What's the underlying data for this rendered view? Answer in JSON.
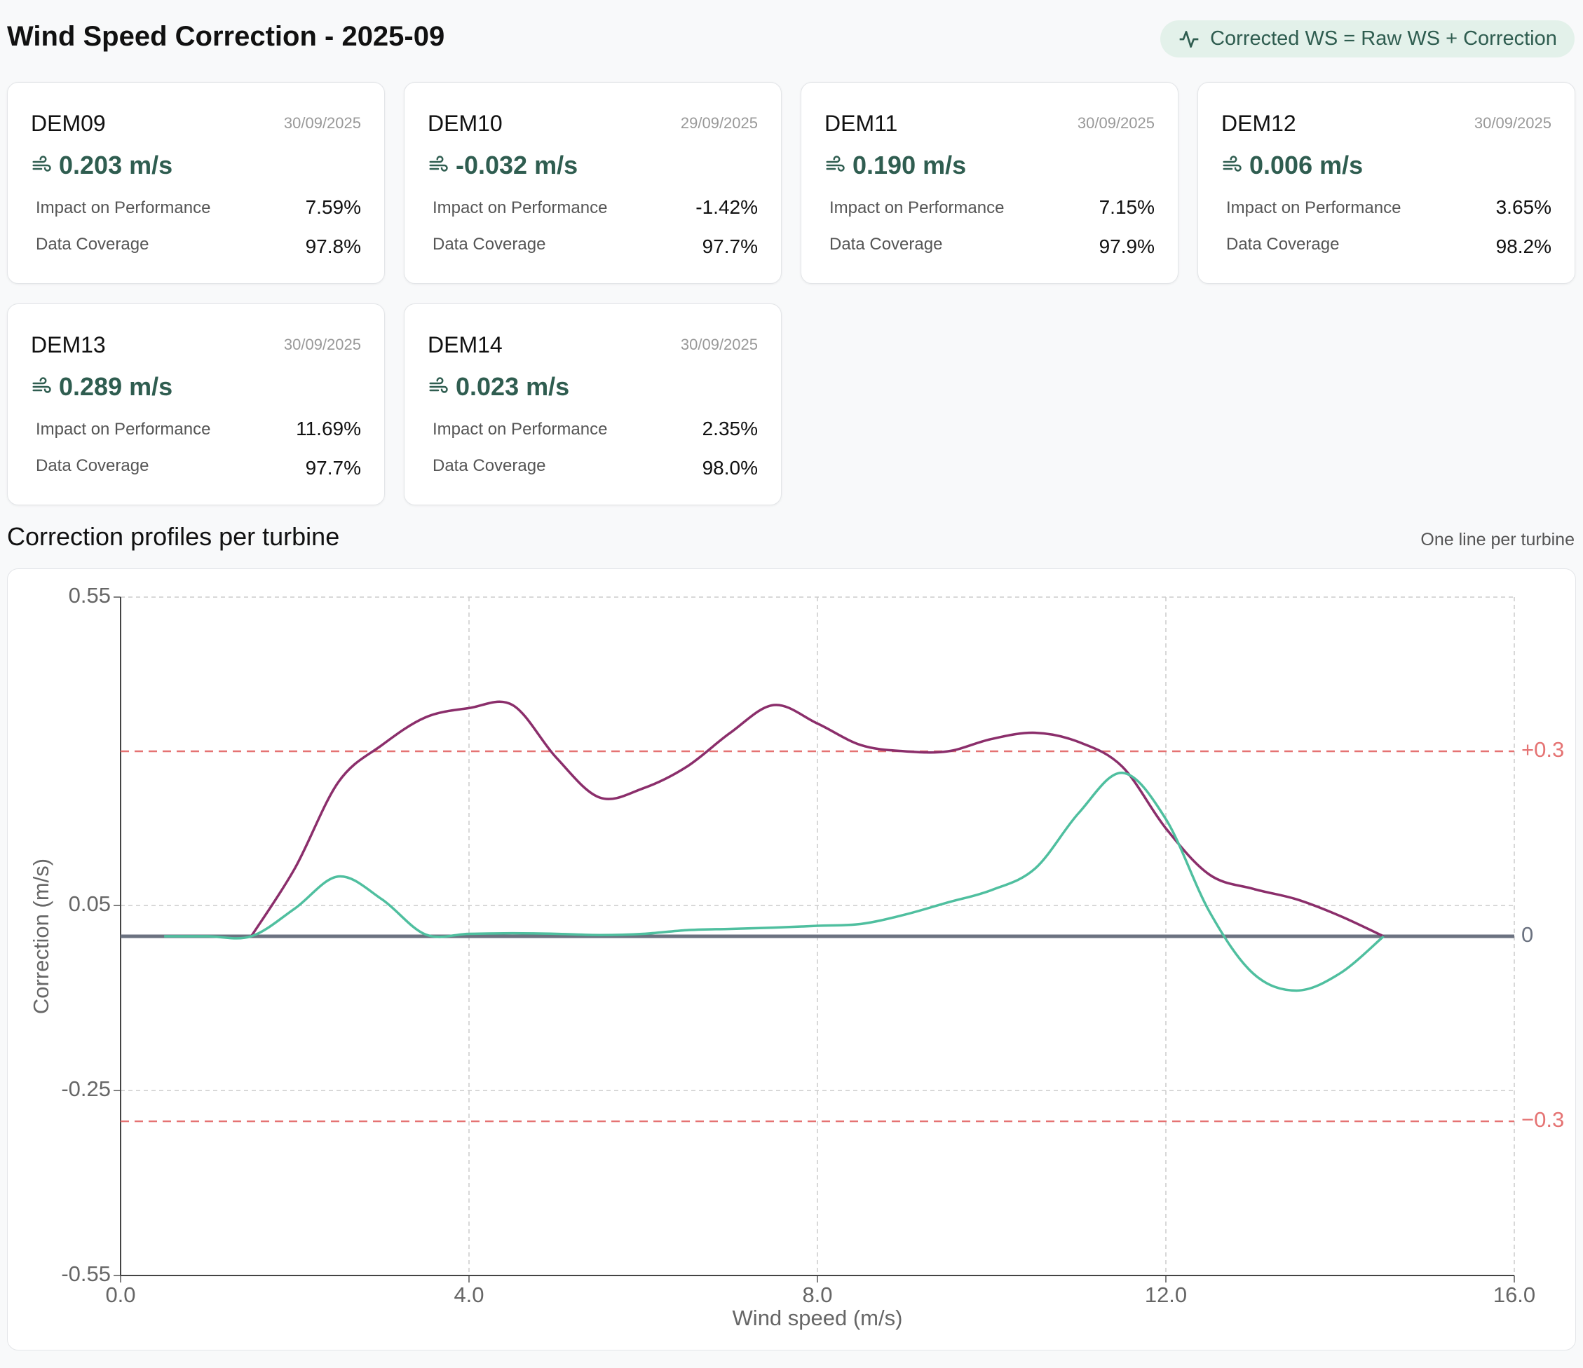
{
  "header": {
    "title": "Wind Speed Correction - 2025-09",
    "badge": "Corrected WS = Raw WS + Correction"
  },
  "card_labels": {
    "impact": "Impact on Performance",
    "coverage": "Data Coverage"
  },
  "cards": [
    {
      "name": "DEM09",
      "date": "30/09/2025",
      "value": "0.203 m/s",
      "impact": "7.59%",
      "coverage": "97.8%"
    },
    {
      "name": "DEM10",
      "date": "29/09/2025",
      "value": "-0.032 m/s",
      "impact": "-1.42%",
      "coverage": "97.7%"
    },
    {
      "name": "DEM11",
      "date": "30/09/2025",
      "value": "0.190 m/s",
      "impact": "7.15%",
      "coverage": "97.9%"
    },
    {
      "name": "DEM12",
      "date": "30/09/2025",
      "value": "0.006 m/s",
      "impact": "3.65%",
      "coverage": "98.2%"
    },
    {
      "name": "DEM13",
      "date": "30/09/2025",
      "value": "0.289 m/s",
      "impact": "11.69%",
      "coverage": "97.7%"
    },
    {
      "name": "DEM14",
      "date": "30/09/2025",
      "value": "0.023 m/s",
      "impact": "2.35%",
      "coverage": "98.0%"
    }
  ],
  "section": {
    "title": "Correction profiles per turbine",
    "note": "One line per turbine"
  },
  "chart_data": {
    "type": "line",
    "x_label": "Wind speed (m/s)",
    "y_label": "Correction (m/s)",
    "x": [
      0.5,
      1.0,
      1.5,
      2.0,
      2.5,
      3.0,
      3.5,
      4.0,
      4.5,
      5.0,
      5.5,
      6.0,
      6.5,
      7.0,
      7.5,
      8.0,
      8.5,
      9.0,
      9.5,
      10.0,
      10.5,
      11.0,
      11.5,
      12.0,
      12.5,
      13.0,
      13.5,
      14.0,
      14.5
    ],
    "series": [
      {
        "color": "#8b2e6b",
        "values": [
          null,
          null,
          0,
          0.11,
          0.25,
          0.31,
          0.355,
          0.37,
          0.375,
          0.29,
          0.225,
          0.24,
          0.275,
          0.33,
          0.375,
          0.345,
          0.31,
          0.3,
          0.3,
          0.32,
          0.33,
          0.315,
          0.275,
          0.175,
          0.1,
          0.077,
          0.06,
          0.033,
          0
        ]
      },
      {
        "color": "#4fbf9f",
        "values": [
          0,
          0,
          0,
          0.045,
          0.097,
          0.06,
          0.003,
          0.004,
          0.005,
          0.004,
          0.002,
          0.004,
          0.01,
          0.012,
          0.014,
          0.017,
          0.02,
          0.035,
          0.055,
          0.075,
          0.11,
          0.2,
          0.265,
          0.19,
          0.04,
          -0.06,
          -0.088,
          -0.06,
          0
        ]
      }
    ],
    "xlim": [
      0,
      16
    ],
    "ylim": [
      -0.55,
      0.55
    ],
    "xticks": [
      {
        "value": 0,
        "label": "0.0"
      },
      {
        "value": 4,
        "label": "4.0"
      },
      {
        "value": 8,
        "label": "8.0"
      },
      {
        "value": 12,
        "label": "12.0"
      },
      {
        "value": 16,
        "label": "16.0"
      }
    ],
    "yticks": [
      -0.55,
      -0.25,
      0.05,
      0.55
    ],
    "grid": true,
    "reference_lines": [
      {
        "value": 0.3,
        "label": "+0.3",
        "color": "#e57373"
      },
      {
        "value": -0.3,
        "label": "−0.3",
        "color": "#e57373"
      },
      {
        "value": 0,
        "label": "0",
        "color": "#6b7280"
      }
    ]
  }
}
